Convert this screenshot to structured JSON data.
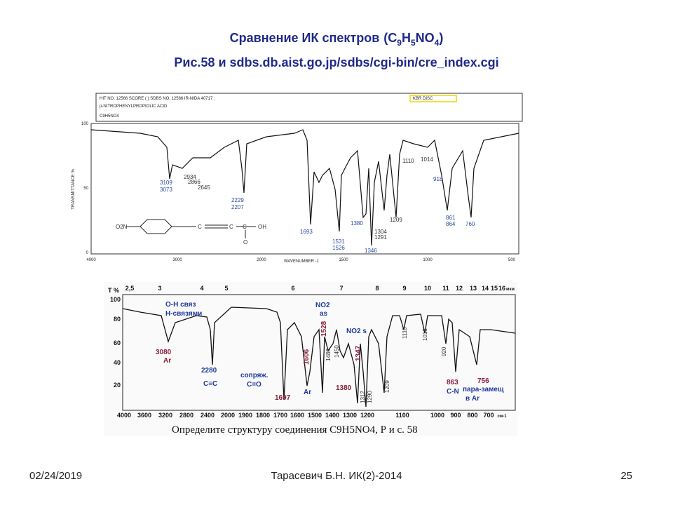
{
  "title": {
    "line1": "Сравнение ИК спектров",
    "formula": [
      "(C",
      "9",
      "H",
      "5",
      "NO",
      "4",
      ")"
    ],
    "line2": "Рис.58 и sdbs.db.aist.go.jp/sdbs/cgi-bin/cre_index.cgi"
  },
  "spectrum1": {
    "header": [
      "HIT NO. 12566  SCORE (  )  SDBS NO. 12566  IR-NIDA 40717 :",
      "KBR DISC",
      "p-NITROPHENYLPROPIOLIC ACID",
      "C9H5NO4"
    ],
    "y_label": "TRANSMITTANCE %",
    "y_ticks": [
      "100",
      "50",
      "0"
    ],
    "x_label": "WAVENUMBER -1",
    "x_ticks": [
      "4000",
      "3000",
      "2000",
      "1500",
      "1000",
      "500"
    ],
    "peaks": [
      "3109",
      "3073",
      "2934",
      "2866",
      "2645",
      "2229",
      "2207",
      "1693",
      "1531",
      "1526",
      "1380",
      "1346",
      "1304",
      "1291",
      "1209",
      "1110",
      "1014",
      "918",
      "861",
      "864",
      "760"
    ],
    "structure": [
      "O2N",
      "C",
      "C",
      "C",
      "OH",
      "O"
    ]
  },
  "spectrum2": {
    "y_label": "T %",
    "micron_ticks": [
      "2,5",
      "3",
      "4",
      "5",
      "6",
      "7",
      "8",
      "9",
      "10",
      "11",
      "12",
      "13",
      "14",
      "15",
      "16",
      "мкм"
    ],
    "y_ticks": [
      "100",
      "80",
      "60",
      "40",
      "20"
    ],
    "x_ticks": [
      "4000",
      "3600",
      "3200",
      "2800",
      "2400",
      "2000",
      "1900",
      "1800",
      "1700",
      "1600",
      "1500",
      "1400",
      "1300",
      "1200",
      "1100",
      "1000",
      "900",
      "800",
      "700",
      "см-1"
    ],
    "annotations": [
      "O-H связ",
      "H-связями",
      "3080",
      "Ar",
      "2280",
      "C≡C",
      "сопряж.",
      "C=O",
      "1697",
      "1606",
      "Ar",
      "NO2",
      "as",
      "1528",
      "1480",
      "1450",
      "1380",
      "NO2 s",
      "1347",
      "1312",
      "1290",
      "1209",
      "1110",
      "1015",
      "920",
      "863",
      "C-N",
      "756",
      "пара-замещ",
      "в Ar"
    ],
    "caption": "Определите структуру соединения C9H5NO4, Р и с. 58"
  },
  "footer": {
    "date": "02/24/2019",
    "author": "Тарасевич Б.Н. ИК(2)-2014",
    "page": "25"
  }
}
